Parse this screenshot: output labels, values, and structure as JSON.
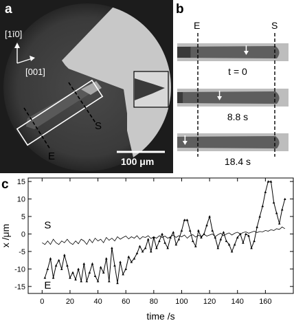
{
  "panel_a": {
    "label": "a",
    "axis_vertical": "[1̅0]",
    "axis_vertical_display": "[1ī0]",
    "axis_horizontal": "[001]",
    "line_s": "S",
    "line_e": "E",
    "scalebar": "100 μm"
  },
  "panel_b": {
    "label": "b",
    "marker_e": "E",
    "marker_s": "S",
    "frames": [
      {
        "time": "t = 0",
        "arrow_pos": 0.62,
        "front_pos": 0.12
      },
      {
        "time": "8.8 s",
        "arrow_pos": 0.38,
        "front_pos": 0.05
      },
      {
        "time": "18.4 s",
        "arrow_pos": 0.07,
        "front_pos": 0.0
      }
    ]
  },
  "panel_c": {
    "label": "c"
  },
  "chart_data": {
    "type": "line",
    "xlabel": "time /s",
    "ylabel": "x /μm",
    "xlim": [
      -10,
      180
    ],
    "ylim": [
      -17,
      16
    ],
    "xticks": [
      0,
      20,
      40,
      60,
      80,
      100,
      120,
      140,
      160
    ],
    "yticks": [
      -15,
      -10,
      -5,
      0,
      5,
      10,
      15
    ],
    "grid": false,
    "series": [
      {
        "name": "S",
        "marker": "none",
        "x": [
          0,
          2,
          4,
          6,
          8,
          10,
          12,
          14,
          16,
          18,
          20,
          22,
          24,
          26,
          28,
          30,
          32,
          34,
          36,
          38,
          40,
          42,
          44,
          46,
          48,
          50,
          52,
          54,
          56,
          58,
          60,
          62,
          64,
          66,
          68,
          70,
          72,
          74,
          76,
          78,
          80,
          82,
          84,
          86,
          88,
          90,
          92,
          94,
          96,
          98,
          100,
          102,
          104,
          106,
          108,
          110,
          112,
          114,
          116,
          118,
          120,
          122,
          124,
          126,
          128,
          130,
          132,
          134,
          136,
          138,
          140,
          142,
          144,
          146,
          148,
          150,
          152,
          154,
          156,
          158,
          160,
          162,
          164,
          166,
          168,
          170,
          172,
          174
        ],
        "y": [
          -2.5,
          -3,
          -2,
          -3,
          -1.5,
          -2.5,
          -3,
          -2,
          -2.5,
          -1.5,
          -2.5,
          -3,
          -2,
          -2.8,
          -1.5,
          -2,
          -3,
          -1.5,
          -2.5,
          -1.2,
          -2,
          -1.5,
          -2.5,
          -1,
          -1.8,
          -1.2,
          -2,
          -0.8,
          -1.5,
          -1,
          -0.6,
          -1.4,
          -0.8,
          -1.2,
          -0.5,
          -1.5,
          -0.8,
          -1,
          -0.5,
          -1.3,
          -0.8,
          -1.2,
          -0.5,
          -1,
          -0.6,
          -1.2,
          -0.8,
          -0.3,
          -1,
          -0.5,
          -0.8,
          -0.3,
          -1.2,
          -0.5,
          -0.2,
          -0.9,
          -0.4,
          -0.7,
          -0.1,
          -0.6,
          -0.3,
          0,
          -0.8,
          -0.2,
          0.2,
          -0.5,
          0,
          0.3,
          -0.3,
          0.2,
          0.5,
          0,
          0.4,
          0.6,
          0.2,
          0.5,
          0.8,
          0.4,
          0.7,
          0.6,
          1,
          0.8,
          1.2,
          1,
          1.5,
          1.3,
          2,
          1.5
        ]
      },
      {
        "name": "E",
        "marker": "triangle",
        "x": [
          2,
          4,
          6,
          8,
          10,
          12,
          14,
          16,
          18,
          20,
          22,
          24,
          26,
          28,
          30,
          32,
          34,
          36,
          38,
          40,
          42,
          44,
          46,
          48,
          50,
          52,
          54,
          56,
          58,
          60,
          62,
          64,
          66,
          68,
          70,
          72,
          74,
          76,
          78,
          80,
          82,
          84,
          86,
          88,
          90,
          92,
          94,
          96,
          98,
          100,
          102,
          104,
          106,
          108,
          110,
          112,
          114,
          116,
          118,
          120,
          122,
          124,
          126,
          128,
          130,
          132,
          134,
          136,
          138,
          140,
          142,
          144,
          146,
          148,
          150,
          152,
          154,
          156,
          158,
          160,
          162,
          164,
          166,
          168,
          170,
          172,
          174
        ],
        "y": [
          -12.5,
          -10,
          -7,
          -12.5,
          -9,
          -7.5,
          -10,
          -6,
          -9,
          -12.5,
          -11,
          -13,
          -10,
          -13.5,
          -8.5,
          -13.5,
          -11,
          -8.5,
          -12,
          -13.5,
          -9.5,
          -11,
          -7,
          -13.5,
          -4,
          -9,
          -14,
          -8,
          -11.5,
          -10,
          -6.5,
          -8,
          -7,
          -5.5,
          -3.5,
          -5,
          -4,
          -1.5,
          -5,
          -1,
          -4,
          -2,
          0,
          -2.5,
          -4,
          -1,
          0.5,
          -3,
          -1.5,
          1,
          4,
          4,
          1,
          -2,
          -3.5,
          1,
          -1,
          0,
          2.5,
          5,
          1,
          -1,
          -4,
          -1.5,
          0.5,
          -2,
          -3,
          -5,
          -3,
          -1,
          0,
          -2.5,
          0,
          -0.5,
          -4,
          -2,
          2,
          5,
          8,
          12,
          15,
          15,
          9,
          6,
          3,
          7,
          10
        ]
      }
    ]
  }
}
